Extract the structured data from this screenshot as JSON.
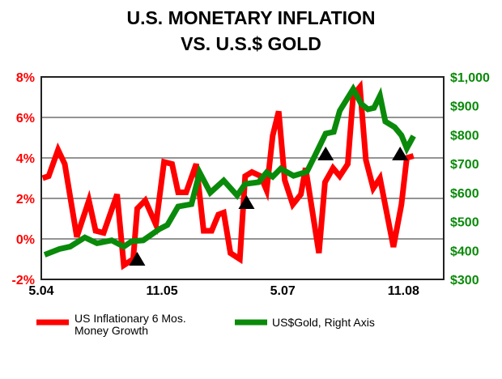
{
  "chart_data": {
    "type": "line",
    "title_lines": [
      "U.S. MONETARY INFLATION",
      "VS. U.S.$ GOLD"
    ],
    "x_unit": "months since 5.04",
    "xlim": [
      0,
      60
    ],
    "x_ticks": [
      {
        "x": 0,
        "label": "5.04"
      },
      {
        "x": 18,
        "label": "11.05"
      },
      {
        "x": 36,
        "label": "5.07"
      },
      {
        "x": 54,
        "label": "11.08"
      }
    ],
    "y_left": {
      "lim": [
        -2,
        8
      ],
      "ticks": [
        {
          "v": 8,
          "label": "8%"
        },
        {
          "v": 6,
          "label": "6%"
        },
        {
          "v": 4,
          "label": "4%"
        },
        {
          "v": 2,
          "label": "2%"
        },
        {
          "v": 0,
          "label": "0%"
        },
        {
          "v": -2,
          "label": "-2%"
        }
      ]
    },
    "y_right": {
      "lim": [
        300,
        1000
      ],
      "ticks": [
        {
          "v": 1000,
          "label": "$1,000"
        },
        {
          "v": 900,
          "label": "$900"
        },
        {
          "v": 800,
          "label": "$800"
        },
        {
          "v": 700,
          "label": "$700"
        },
        {
          "v": 600,
          "label": "$600"
        },
        {
          "v": 500,
          "label": "$500"
        },
        {
          "v": 400,
          "label": "$400"
        },
        {
          "v": 300,
          "label": "$300"
        }
      ]
    },
    "grid": true,
    "series": [
      {
        "name": "US Inflationary 6 Mos. Money Growth",
        "legend_lines": [
          "US Inflationary 6 Mos.",
          "Money Growth"
        ],
        "axis": "left",
        "color": "#ff0000",
        "points": [
          [
            0.2,
            3.0
          ],
          [
            1.1,
            3.1
          ],
          [
            2.5,
            4.4
          ],
          [
            3.5,
            3.7
          ],
          [
            5.3,
            0.1
          ],
          [
            7.1,
            1.9
          ],
          [
            8.1,
            0.4
          ],
          [
            9.3,
            0.3
          ],
          [
            11.3,
            2.2
          ],
          [
            12.3,
            -1.3
          ],
          [
            13.7,
            -1.0
          ],
          [
            14.3,
            1.5
          ],
          [
            15.5,
            1.9
          ],
          [
            17.1,
            0.7
          ],
          [
            18.3,
            3.8
          ],
          [
            19.5,
            3.7
          ],
          [
            20.4,
            2.3
          ],
          [
            21.6,
            2.3
          ],
          [
            23.1,
            3.7
          ],
          [
            24.2,
            0.4
          ],
          [
            25.4,
            0.4
          ],
          [
            26.4,
            1.2
          ],
          [
            27.2,
            1.3
          ],
          [
            28.2,
            -0.7
          ],
          [
            29.6,
            -1.0
          ],
          [
            30.4,
            3.1
          ],
          [
            31.4,
            3.3
          ],
          [
            32.7,
            3.1
          ],
          [
            33.6,
            2.4
          ],
          [
            34.5,
            5.1
          ],
          [
            35.4,
            6.3
          ],
          [
            36.3,
            2.9
          ],
          [
            37.5,
            1.7
          ],
          [
            38.7,
            2.2
          ],
          [
            39.4,
            3.5
          ],
          [
            41.4,
            -0.7
          ],
          [
            42.3,
            2.8
          ],
          [
            43.5,
            3.5
          ],
          [
            44.5,
            3.1
          ],
          [
            45.7,
            3.7
          ],
          [
            46.5,
            7.1
          ],
          [
            47.5,
            7.5
          ],
          [
            48.4,
            3.9
          ],
          [
            49.5,
            2.5
          ],
          [
            50.5,
            3.0
          ],
          [
            52.5,
            -0.4
          ],
          [
            53.7,
            1.7
          ],
          [
            54.5,
            4.0
          ],
          [
            55.5,
            4.1
          ]
        ]
      },
      {
        "name": "US$Gold, Right Axis",
        "legend_lines": [
          "US$Gold, Right Axis"
        ],
        "axis": "right",
        "color": "#0a8a0a",
        "points": [
          [
            0.5,
            385
          ],
          [
            2.7,
            405
          ],
          [
            4.3,
            413
          ],
          [
            6.5,
            445
          ],
          [
            8.3,
            425
          ],
          [
            10.5,
            435
          ],
          [
            12.3,
            413
          ],
          [
            13.5,
            432
          ],
          [
            15.2,
            435
          ],
          [
            17.6,
            474
          ],
          [
            18.8,
            488
          ],
          [
            20.4,
            552
          ],
          [
            22.4,
            560
          ],
          [
            23.6,
            670
          ],
          [
            25.2,
            600
          ],
          [
            27.2,
            642
          ],
          [
            29.2,
            590
          ],
          [
            30.4,
            630
          ],
          [
            32.4,
            636
          ],
          [
            33.6,
            670
          ],
          [
            34.5,
            655
          ],
          [
            35.7,
            683
          ],
          [
            37.6,
            658
          ],
          [
            39.6,
            672
          ],
          [
            40.8,
            728
          ],
          [
            42.4,
            804
          ],
          [
            43.6,
            810
          ],
          [
            44.5,
            883
          ],
          [
            46.5,
            958
          ],
          [
            47.7,
            907
          ],
          [
            48.7,
            888
          ],
          [
            49.6,
            893
          ],
          [
            50.5,
            935
          ],
          [
            51.3,
            846
          ],
          [
            52.7,
            826
          ],
          [
            53.7,
            798
          ],
          [
            54.5,
            753
          ],
          [
            55.5,
            796
          ]
        ]
      }
    ],
    "markers": [
      {
        "shape": "triangle",
        "x": 14.3,
        "y_left": -1.0
      },
      {
        "shape": "triangle",
        "x": 30.6,
        "y_left": 1.8
      },
      {
        "shape": "triangle",
        "x": 42.4,
        "y_left": 4.2
      },
      {
        "shape": "triangle",
        "x": 53.5,
        "y_left": 4.2
      }
    ],
    "legend_placement": "bottom"
  }
}
